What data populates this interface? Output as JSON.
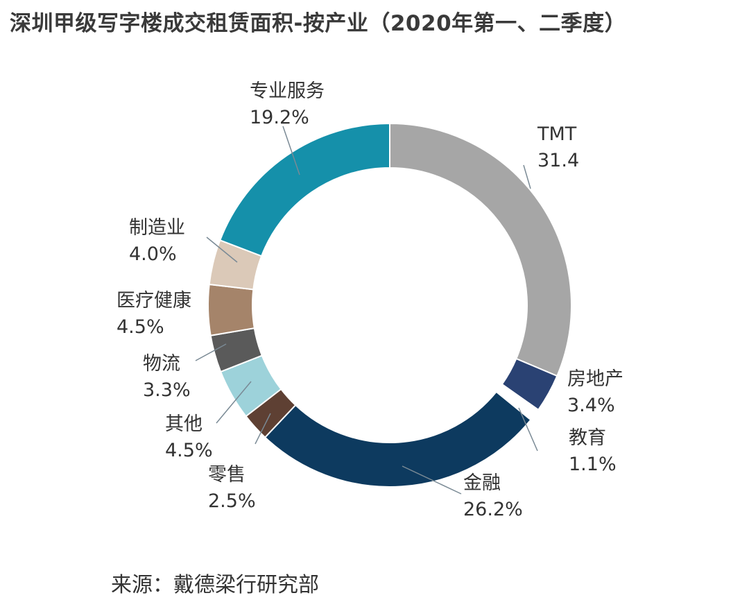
{
  "title": "深圳甲级写字楼成交租赁面积-按产业（2020年第一、二季度）",
  "source": "来源：戴德梁行研究部",
  "chart_data": {
    "type": "pie",
    "variant": "donut",
    "title": "深圳甲级写字楼成交租赁面积-按产业（2020年第一、二季度）",
    "legend": "none",
    "slices": [
      {
        "label": "TMT",
        "value": 31.4,
        "value_text": "31.4",
        "color": "#a6a6a6"
      },
      {
        "label": "房地产",
        "value": 3.4,
        "value_text": "3.4%",
        "color": "#2a4273"
      },
      {
        "label": "教育",
        "value": 1.1,
        "value_text": "1.1%",
        "color": "#ffffff"
      },
      {
        "label": "金融",
        "value": 26.2,
        "value_text": "26.2%",
        "color": "#0d3a5f"
      },
      {
        "label": "零售",
        "value": 2.5,
        "value_text": "2.5%",
        "color": "#5e4033"
      },
      {
        "label": "其他",
        "value": 4.5,
        "value_text": "4.5%",
        "color": "#9dd2da"
      },
      {
        "label": "物流",
        "value": 3.3,
        "value_text": "3.3%",
        "color": "#5a5a5a"
      },
      {
        "label": "医疗健康",
        "value": 4.5,
        "value_text": "4.5%",
        "color": "#a5846a"
      },
      {
        "label": "制造业",
        "value": 4.0,
        "value_text": "4.0%",
        "color": "#dbc9b8"
      },
      {
        "label": "专业服务",
        "value": 19.2,
        "value_text": "19.2%",
        "color": "#1590aa"
      }
    ]
  }
}
